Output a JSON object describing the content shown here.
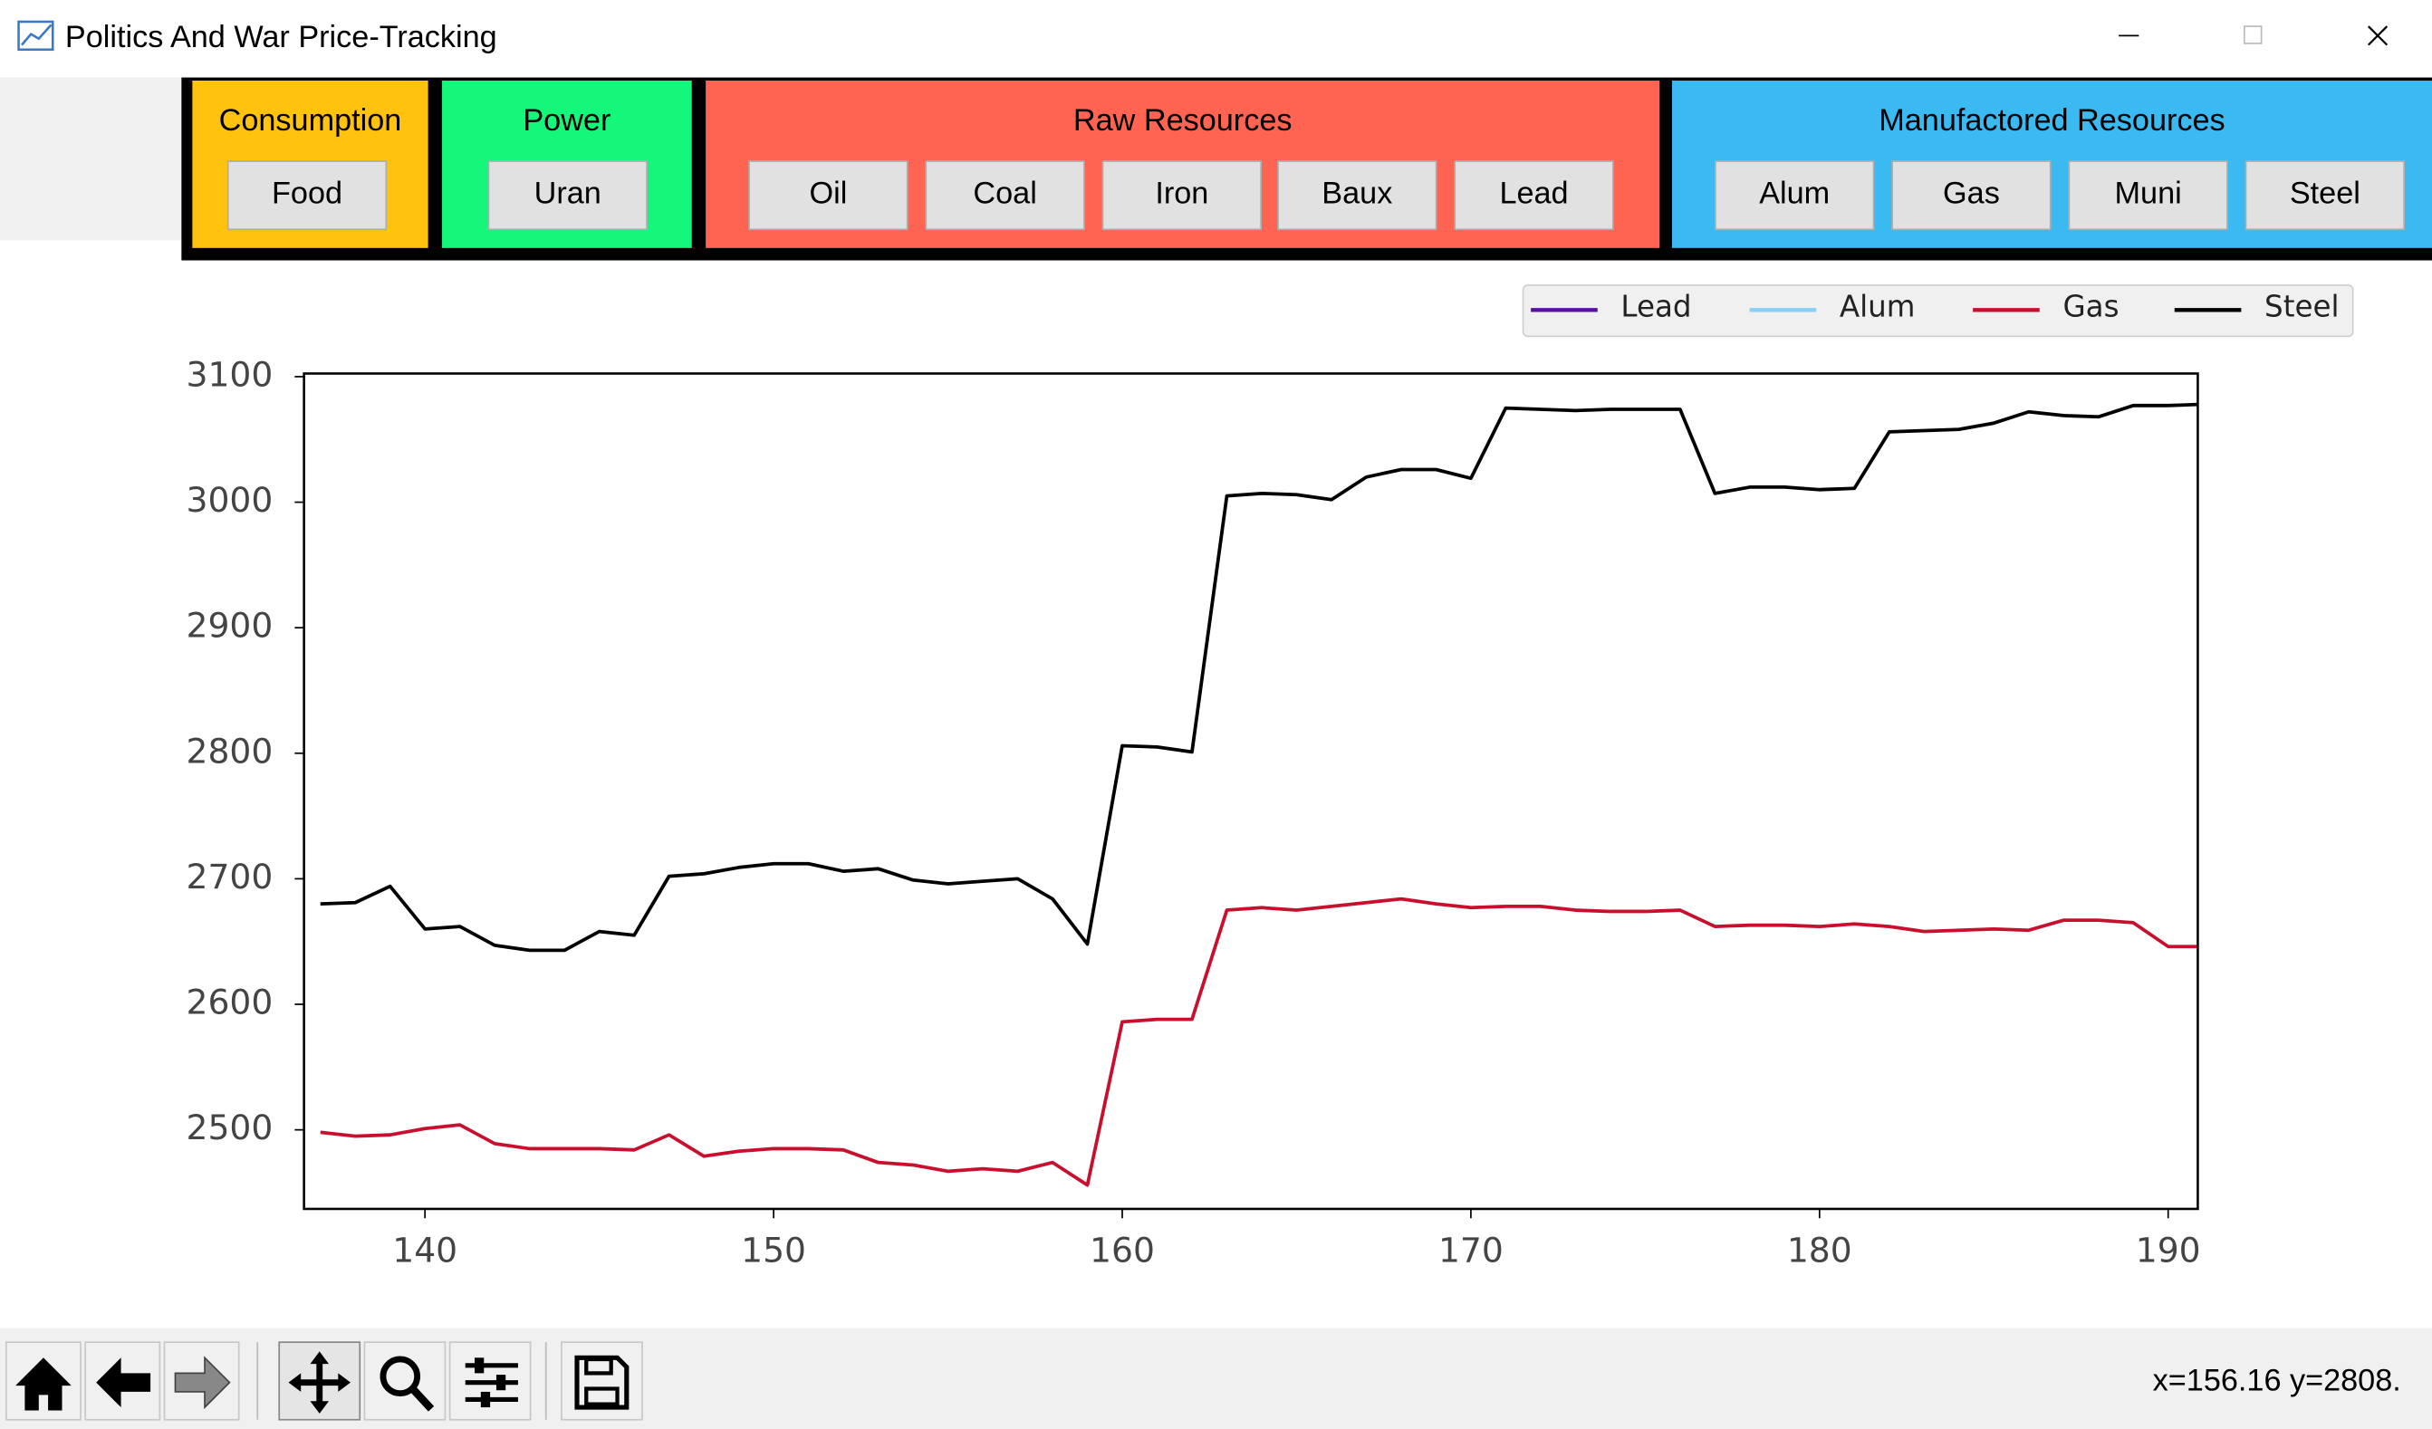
{
  "window": {
    "title": "Politics And War Price-Tracking"
  },
  "groups": [
    {
      "label": "Consumption",
      "color": "#ffc20e",
      "buttons": [
        "Food"
      ]
    },
    {
      "label": "Power",
      "color": "#14f77a",
      "buttons": [
        "Uran"
      ]
    },
    {
      "label": "Raw Resources",
      "color": "#ff6352",
      "buttons": [
        "Oil",
        "Coal",
        "Iron",
        "Baux",
        "Lead"
      ]
    },
    {
      "label": "Manufactored Resources",
      "color": "#3bb9f1",
      "buttons": [
        "Alum",
        "Gas",
        "Muni",
        "Steel"
      ]
    }
  ],
  "chart_data": {
    "type": "line",
    "legend": "upper right",
    "x": [
      137,
      138,
      139,
      140,
      141,
      142,
      143,
      144,
      145,
      146,
      147,
      148,
      149,
      150,
      151,
      152,
      153,
      154,
      155,
      156,
      157,
      158,
      159,
      160,
      161,
      162,
      163,
      164,
      165,
      166,
      167,
      168,
      169,
      170,
      171,
      172,
      173,
      174,
      175,
      176,
      177,
      178,
      179,
      180,
      181,
      182,
      183,
      184,
      185,
      186,
      187,
      188,
      189,
      190,
      191
    ],
    "series": [
      {
        "name": "Lead",
        "color": "#5b0fa0",
        "values": [
          null,
          null,
          null,
          null,
          null,
          null,
          null,
          null,
          null,
          null,
          null,
          null,
          null,
          null,
          null,
          null,
          null,
          null,
          null,
          null,
          null,
          null,
          null,
          null,
          null,
          null,
          null,
          null,
          null,
          null,
          null,
          null,
          null,
          null,
          null,
          null,
          null,
          null,
          null,
          null,
          null,
          null,
          null,
          null,
          null,
          null,
          null,
          null,
          null,
          null,
          null,
          null,
          null,
          null,
          null
        ]
      },
      {
        "name": "Alum",
        "color": "#87cefa",
        "values": [
          null,
          null,
          null,
          null,
          null,
          null,
          null,
          null,
          null,
          null,
          null,
          null,
          null,
          null,
          null,
          null,
          null,
          null,
          null,
          null,
          null,
          null,
          null,
          null,
          null,
          null,
          null,
          null,
          null,
          null,
          null,
          null,
          null,
          null,
          null,
          null,
          null,
          null,
          null,
          null,
          null,
          null,
          null,
          null,
          null,
          null,
          null,
          null,
          null,
          null,
          null,
          null,
          null,
          null,
          null
        ]
      },
      {
        "name": "Gas",
        "color": "#c8102e",
        "values": [
          2498,
          2495,
          2496,
          2501,
          2504,
          2489,
          2485,
          2485,
          2485,
          2484,
          2496,
          2479,
          2483,
          2485,
          2485,
          2484,
          2474,
          2472,
          2467,
          2469,
          2467,
          2474,
          2456,
          2586,
          2588,
          2588,
          2675,
          2677,
          2675,
          2678,
          2681,
          2684,
          2680,
          2677,
          2678,
          2678,
          2675,
          2674,
          2674,
          2675,
          2662,
          2663,
          2663,
          2662,
          2664,
          2662,
          2658,
          2659,
          2660,
          2659,
          2667,
          2667,
          2665,
          2646,
          2646
        ]
      },
      {
        "name": "Steel",
        "color": "#000000",
        "values": [
          2680,
          2681,
          2694,
          2660,
          2662,
          2647,
          2643,
          2643,
          2658,
          2655,
          2702,
          2704,
          2709,
          2712,
          2712,
          2706,
          2708,
          2699,
          2696,
          2698,
          2700,
          2684,
          2648,
          2806,
          2805,
          2801,
          3005,
          3007,
          3006,
          3002,
          3020,
          3026,
          3026,
          3019,
          3075,
          3074,
          3073,
          3074,
          3074,
          3074,
          3007,
          3012,
          3012,
          3010,
          3011,
          3056,
          3057,
          3058,
          3063,
          3072,
          3069,
          3068,
          3077,
          3077,
          3078
        ]
      }
    ],
    "xlim": [
      136.53,
      190.85
    ],
    "xticks": [
      140,
      150,
      160,
      170,
      180,
      190
    ],
    "ylim": [
      2437,
      3102.5
    ],
    "yticks": [
      2500,
      2600,
      2700,
      2800,
      2900,
      3000,
      3100
    ]
  },
  "status": "x=156.16 y=2808."
}
